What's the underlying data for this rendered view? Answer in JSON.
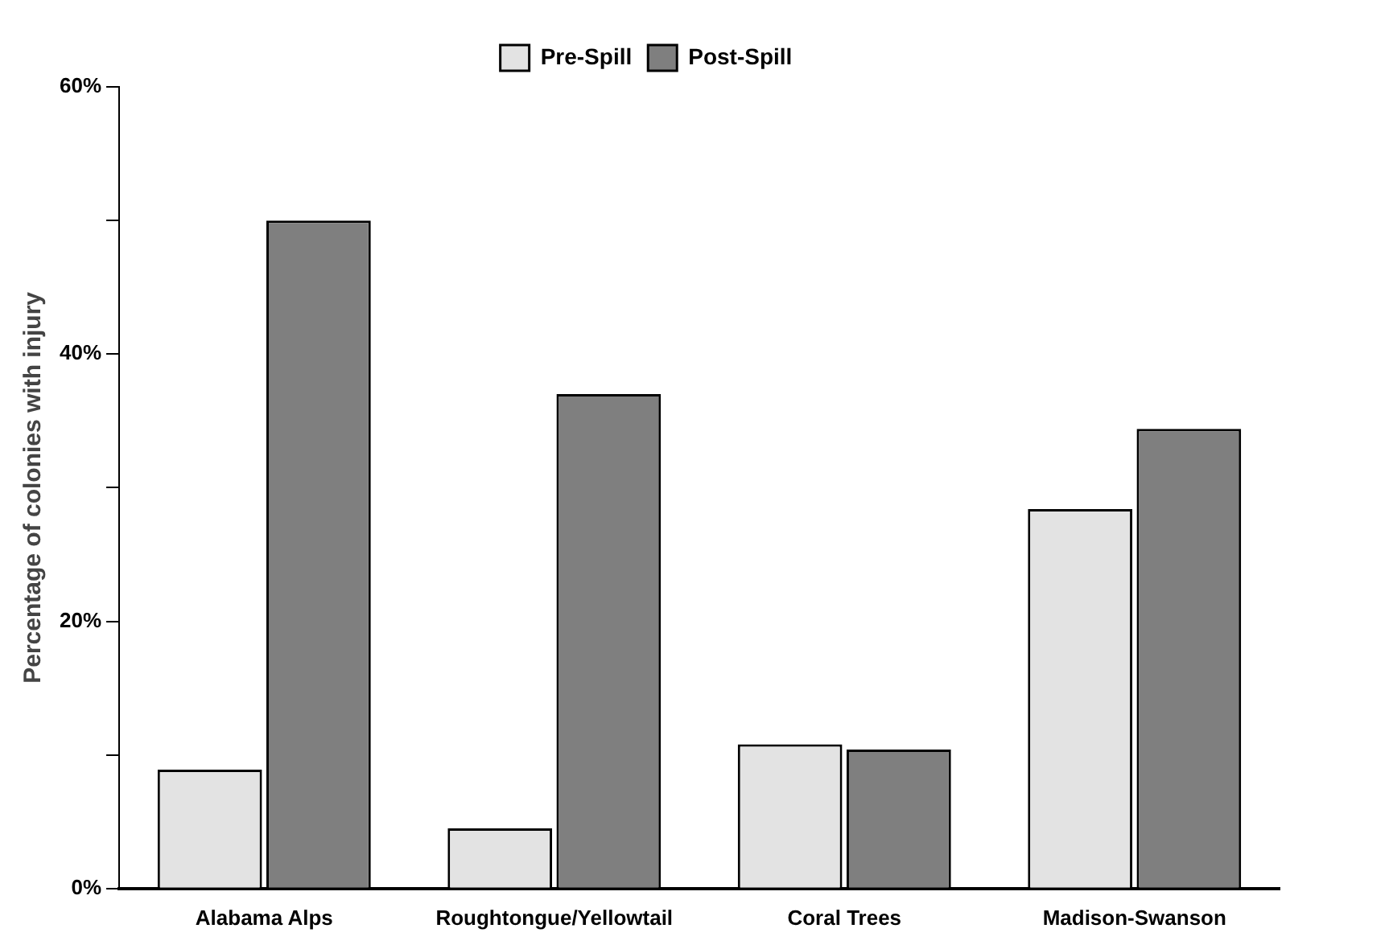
{
  "chart_data": {
    "type": "bar",
    "ylabel": "Percentage of colonies with injury",
    "categories": [
      "Alabama Alps",
      "Roughtongue/Yellowtail",
      "Coral Trees",
      "Madison-Swanson"
    ],
    "series": [
      {
        "name": "Pre-Spill",
        "color": "#e3e3e3",
        "values": [
          8.9,
          4.5,
          10.8,
          28.4
        ]
      },
      {
        "name": "Post-Spill",
        "color": "#7f7f7f",
        "values": [
          50,
          37,
          10.4,
          34.4
        ]
      }
    ],
    "ylim": [
      0,
      60
    ],
    "yticks": [
      {
        "value": 0,
        "label": "0%"
      },
      {
        "value": 10,
        "label": null
      },
      {
        "value": 20,
        "label": "20%"
      },
      {
        "value": 30,
        "label": null
      },
      {
        "value": 40,
        "label": "40%"
      },
      {
        "value": 50,
        "label": null
      },
      {
        "value": 60,
        "label": "60%"
      }
    ],
    "grid": false,
    "legend": "top"
  }
}
